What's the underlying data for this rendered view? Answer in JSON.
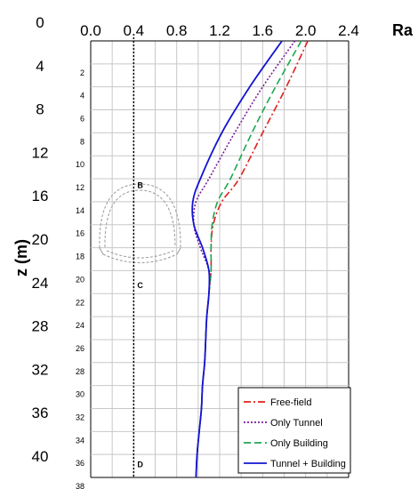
{
  "chart_data": {
    "type": "line",
    "xlabel": "Ra",
    "ylabel": "z (m)",
    "xlim": [
      0,
      2.4
    ],
    "x_ticks": [
      "0.0",
      "0.4",
      "0.8",
      "1.2",
      "1.6",
      "2.0",
      "2.4"
    ],
    "ylim": [
      0,
      38
    ],
    "y_ticks_outer": [
      "0",
      "4",
      "8",
      "12",
      "16",
      "20",
      "24",
      "28",
      "32",
      "36",
      "40"
    ],
    "y_ticks_inner": [
      "2",
      "4",
      "6",
      "8",
      "10",
      "12",
      "14",
      "16",
      "18",
      "20",
      "22",
      "24",
      "26",
      "28",
      "30",
      "32",
      "34",
      "36",
      "38"
    ],
    "grid": true,
    "legend_position": "bottom-right",
    "reference_line_x": 0.4,
    "point_labels": [
      {
        "label": "B",
        "z": 12.5
      },
      {
        "label": "C",
        "z": 21.2
      },
      {
        "label": "D",
        "z": 36.8
      }
    ],
    "series": [
      {
        "name": "Free-field",
        "color": "#e0201b",
        "dash": "dashdot",
        "points": [
          [
            2.02,
            0
          ],
          [
            1.82,
            4
          ],
          [
            1.6,
            8
          ],
          [
            1.38,
            12
          ],
          [
            1.22,
            14
          ],
          [
            1.14,
            16
          ],
          [
            1.12,
            18
          ],
          [
            1.12,
            20
          ],
          [
            1.1,
            22
          ],
          [
            1.08,
            24
          ],
          [
            1.07,
            26
          ],
          [
            1.06,
            28
          ],
          [
            1.04,
            30
          ],
          [
            1.03,
            32
          ],
          [
            1.01,
            34
          ],
          [
            0.99,
            36
          ],
          [
            0.98,
            38
          ]
        ]
      },
      {
        "name": "Only Tunnel",
        "color": "#7a1e9a",
        "dash": "dot",
        "points": [
          [
            1.9,
            0
          ],
          [
            1.6,
            4
          ],
          [
            1.34,
            8
          ],
          [
            1.1,
            12
          ],
          [
            0.98,
            14
          ],
          [
            0.96,
            16
          ],
          [
            1.02,
            18
          ],
          [
            1.1,
            20
          ],
          [
            1.1,
            22
          ],
          [
            1.08,
            24
          ],
          [
            1.07,
            26
          ],
          [
            1.06,
            28
          ],
          [
            1.04,
            30
          ],
          [
            1.03,
            32
          ],
          [
            1.01,
            34
          ],
          [
            0.99,
            36
          ],
          [
            0.98,
            38
          ]
        ]
      },
      {
        "name": "Only Building",
        "color": "#1ea650",
        "dash": "dash",
        "points": [
          [
            1.96,
            0
          ],
          [
            1.72,
            4
          ],
          [
            1.5,
            8
          ],
          [
            1.3,
            12
          ],
          [
            1.18,
            14
          ],
          [
            1.13,
            16
          ],
          [
            1.12,
            18
          ],
          [
            1.12,
            20
          ],
          [
            1.1,
            22
          ],
          [
            1.08,
            24
          ],
          [
            1.07,
            26
          ],
          [
            1.06,
            28
          ],
          [
            1.04,
            30
          ],
          [
            1.03,
            32
          ],
          [
            1.01,
            34
          ],
          [
            0.99,
            36
          ],
          [
            0.98,
            38
          ]
        ]
      },
      {
        "name": "Tunnel + Building",
        "color": "#1414d2",
        "dash": "solid",
        "points": [
          [
            1.78,
            0
          ],
          [
            1.48,
            4
          ],
          [
            1.22,
            8
          ],
          [
            1.02,
            12
          ],
          [
            0.95,
            14
          ],
          [
            0.96,
            16
          ],
          [
            1.04,
            18
          ],
          [
            1.1,
            20
          ],
          [
            1.1,
            22
          ],
          [
            1.08,
            24
          ],
          [
            1.07,
            26
          ],
          [
            1.06,
            28
          ],
          [
            1.04,
            30
          ],
          [
            1.03,
            32
          ],
          [
            1.01,
            34
          ],
          [
            0.99,
            36
          ],
          [
            0.98,
            38
          ]
        ]
      }
    ]
  }
}
